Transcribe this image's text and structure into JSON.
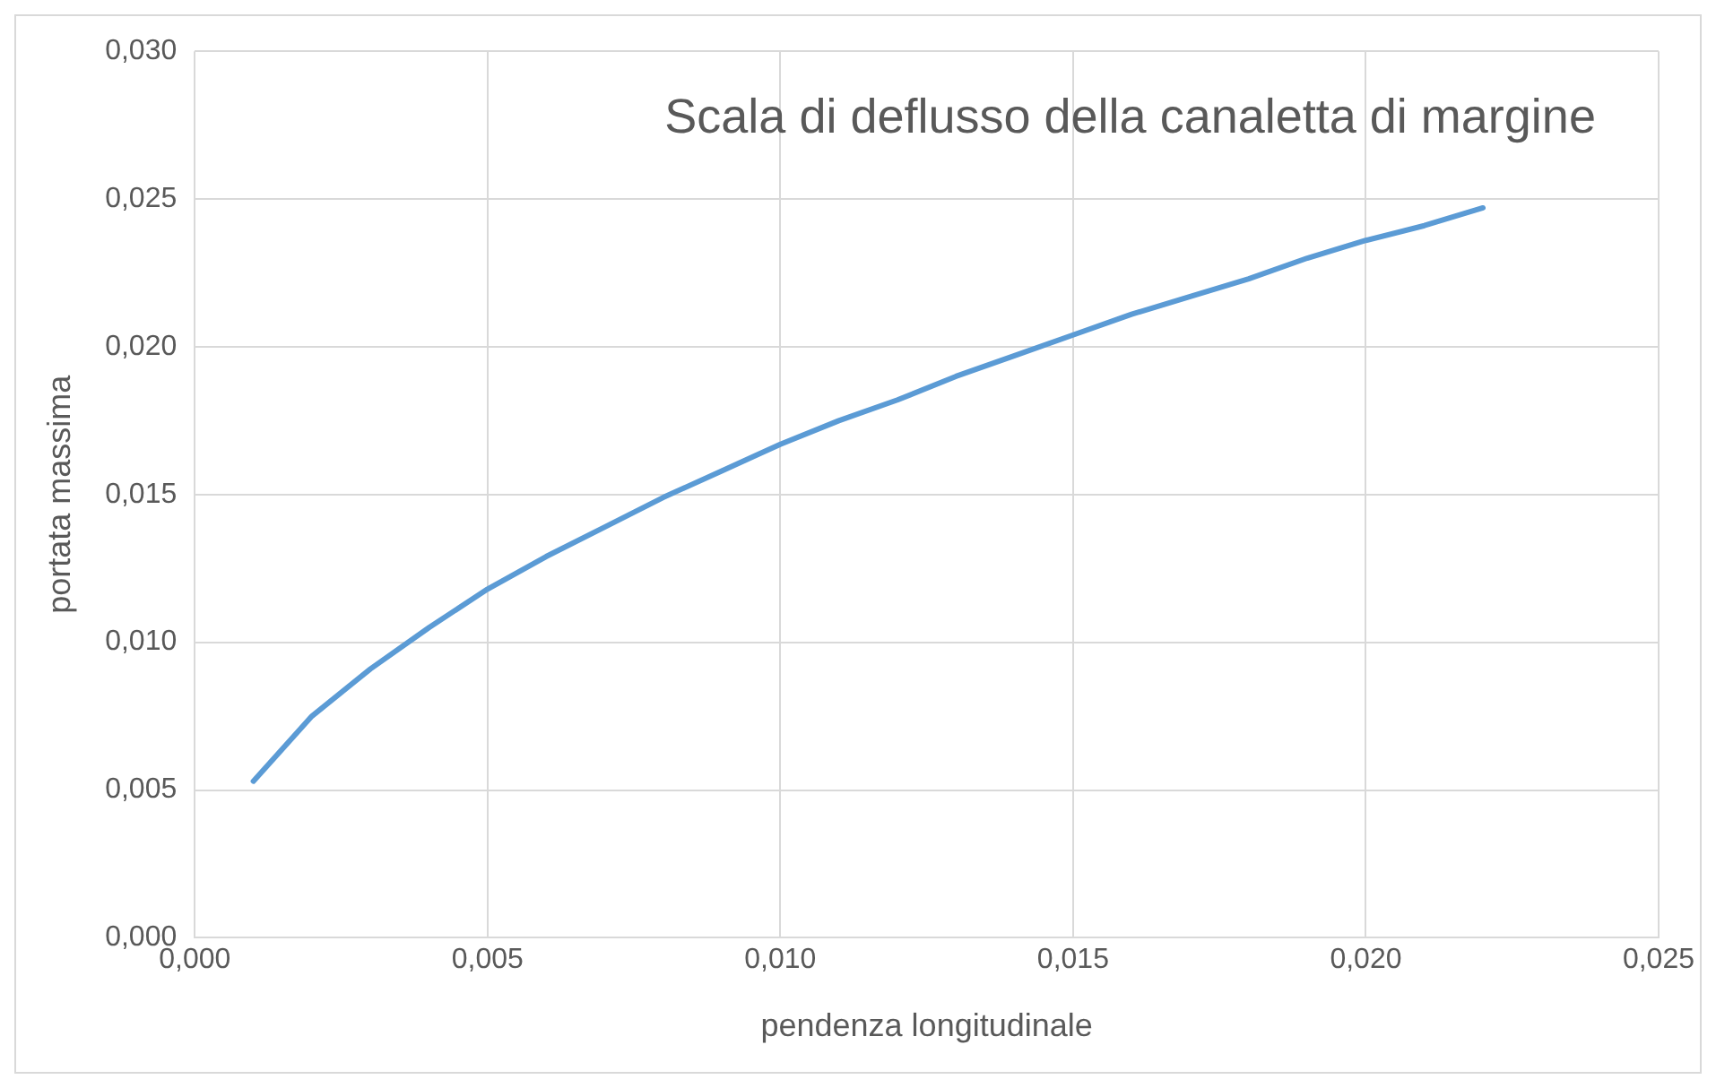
{
  "chart_data": {
    "type": "line",
    "title": "Scala di deflusso della canaletta di margine",
    "xlabel": "pendenza longitudinale",
    "ylabel": "portata massima",
    "x": [
      0.001,
      0.002,
      0.003,
      0.004,
      0.005,
      0.006,
      0.007,
      0.008,
      0.009,
      0.01,
      0.011,
      0.012,
      0.013,
      0.014,
      0.015,
      0.016,
      0.017,
      0.018,
      0.019,
      0.02,
      0.021,
      0.022
    ],
    "series": [
      {
        "color": "#5b9bd5",
        "values": [
          0.0053,
          0.0075,
          0.0091,
          0.0105,
          0.0118,
          0.0129,
          0.0139,
          0.0149,
          0.0158,
          0.0167,
          0.0175,
          0.0182,
          0.019,
          0.0197,
          0.0204,
          0.0211,
          0.0217,
          0.0223,
          0.023,
          0.0236,
          0.0241,
          0.0247
        ]
      }
    ],
    "xlim": [
      0,
      0.025
    ],
    "xticks": [
      {
        "value": 0,
        "label": "0,000"
      },
      {
        "value": 0.005,
        "label": "0,005"
      },
      {
        "value": 0.01,
        "label": "0,010"
      },
      {
        "value": 0.015,
        "label": "0,015"
      },
      {
        "value": 0.02,
        "label": "0,020"
      },
      {
        "value": 0.025,
        "label": "0,025"
      }
    ],
    "ylim": [
      0,
      0.03
    ],
    "yticks": [
      {
        "value": 0,
        "label": "0,000"
      },
      {
        "value": 0.005,
        "label": "0,005"
      },
      {
        "value": 0.01,
        "label": "0,010"
      },
      {
        "value": 0.015,
        "label": "0,015"
      },
      {
        "value": 0.02,
        "label": "0,020"
      },
      {
        "value": 0.025,
        "label": "0,025"
      },
      {
        "value": 0.03,
        "label": "0,030"
      }
    ],
    "grid": true,
    "legend": false,
    "marker": "none",
    "line_style": "solid"
  }
}
